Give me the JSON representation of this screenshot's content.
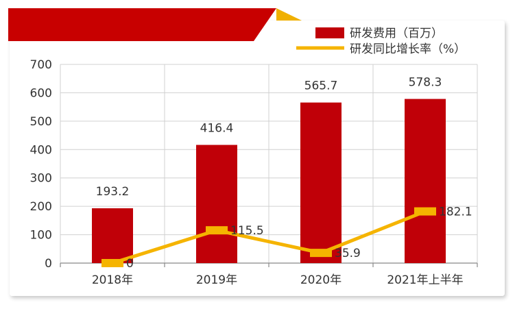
{
  "colors": {
    "bar": "#c00008",
    "line": "#f5b400",
    "banner_red": "#c80000",
    "banner_gold": "#f0b000",
    "grid": "#d0d0d0",
    "axis": "#888888"
  },
  "chart_data": {
    "type": "bar",
    "categories": [
      "2018年",
      "2019年",
      "2020年",
      "2021年上半年"
    ],
    "series": [
      {
        "name": "研发费用（百万）",
        "type": "bar",
        "values": [
          193.2,
          416.4,
          565.7,
          578.3
        ],
        "labels": [
          "193.2",
          "416.4",
          "565.7",
          "578.3"
        ]
      },
      {
        "name": "研发同比增长率（%）",
        "type": "line",
        "values": [
          0,
          115.5,
          35.9,
          182.1
        ],
        "labels": [
          "0",
          "115.5",
          "35.9",
          "182.1"
        ]
      }
    ],
    "ylim": [
      0,
      700
    ],
    "yticks": [
      "0",
      "100",
      "200",
      "300",
      "400",
      "500",
      "600",
      "700"
    ],
    "grid": true,
    "legend_position": "top-right"
  }
}
